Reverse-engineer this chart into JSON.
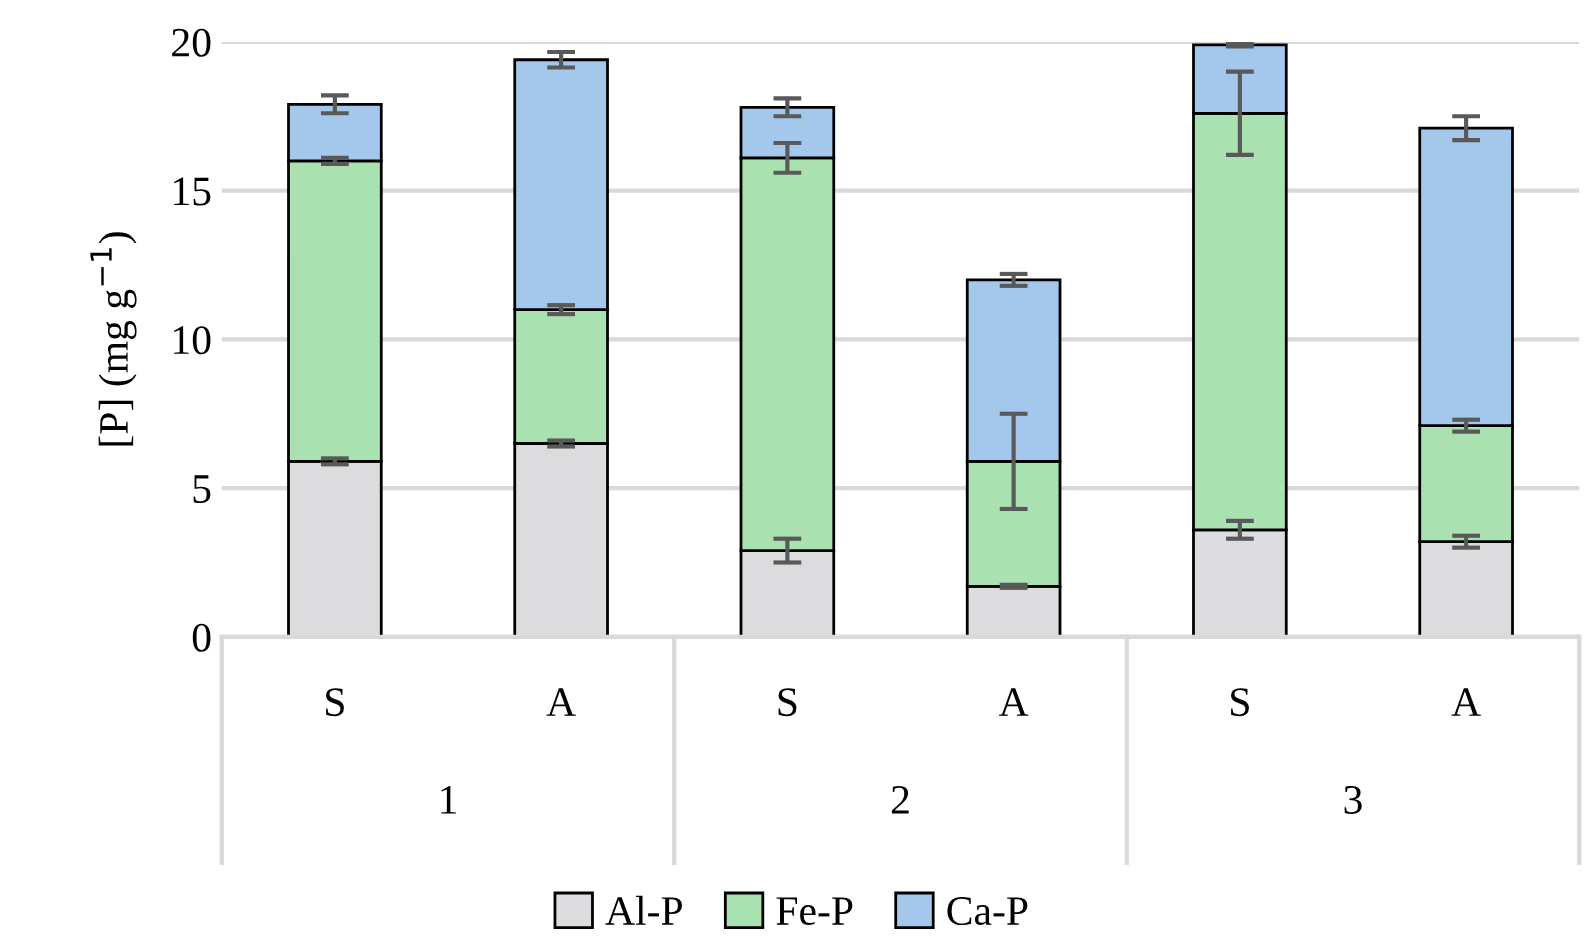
{
  "chart_data": {
    "type": "bar",
    "stacked": true,
    "ylabel": "[P] (mg g$^{−1}$)",
    "categories": [
      "S",
      "A",
      "S",
      "A",
      "S",
      "A"
    ],
    "annotations": [
      "1",
      "2",
      "3"
    ],
    "series": [
      {
        "name": "Al-P",
        "color": "#dcdcdf",
        "values": [
          5.9,
          6.5,
          2.9,
          1.7,
          3.6,
          3.2
        ],
        "errors": [
          0.1,
          0.1,
          0.4,
          0.05,
          0.3,
          0.2
        ]
      },
      {
        "name": "Fe-P",
        "color": "#a9e2b0",
        "values": [
          10.1,
          4.5,
          13.2,
          4.2,
          14.0,
          3.9
        ],
        "errors": [
          0.1,
          0.15,
          0.5,
          1.6,
          1.4,
          0.2
        ]
      },
      {
        "name": "Ca-P",
        "color": "#a3c8ec",
        "values": [
          1.9,
          8.4,
          1.7,
          6.1,
          2.3,
          10.0
        ],
        "errors": [
          0.3,
          0.26,
          0.3,
          0.2,
          0.05,
          0.4
        ]
      }
    ],
    "ylim": [
      0,
      20
    ],
    "yticks": [
      0,
      5,
      10,
      15,
      20
    ],
    "grid": "y",
    "legend": "bottom"
  }
}
